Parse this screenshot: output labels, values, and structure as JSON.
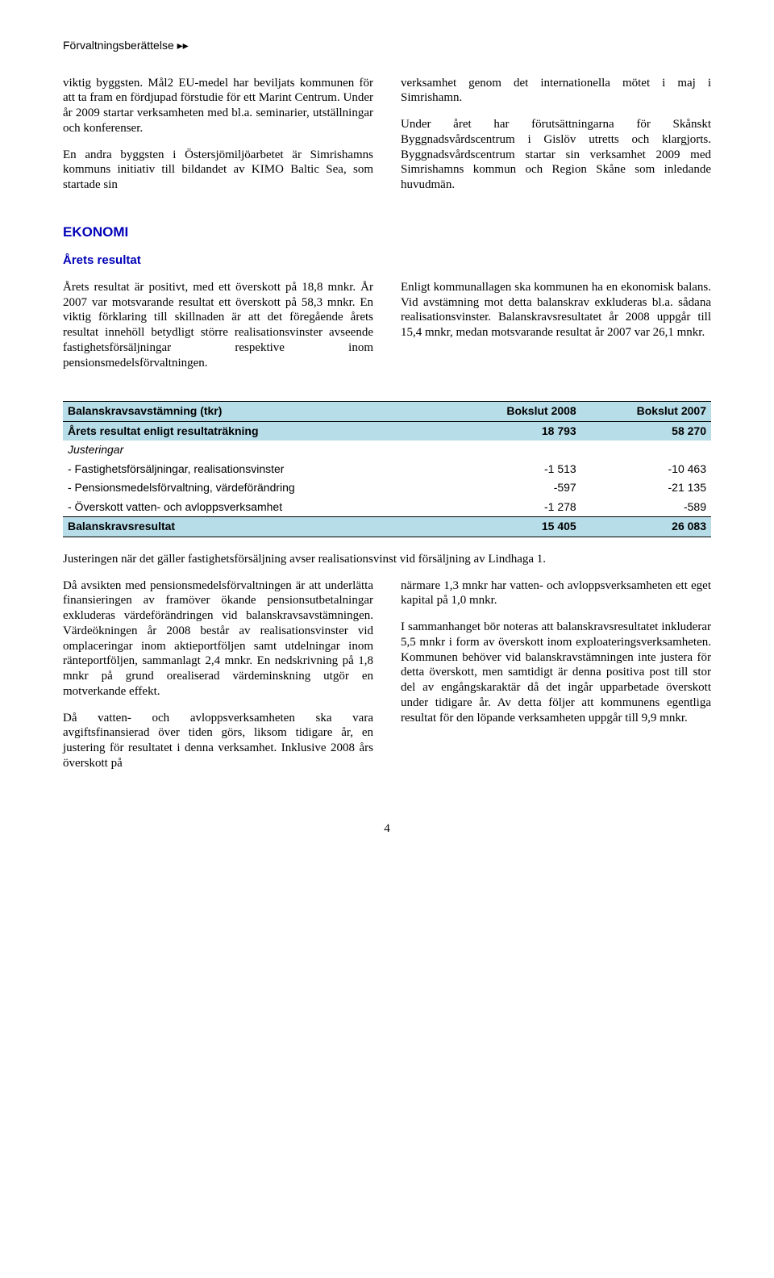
{
  "header": {
    "title": "Förvaltningsberättelse",
    "arrows": "▸▸"
  },
  "block1": {
    "left": {
      "p1": "viktig byggsten. Mål2 EU-medel har beviljats kommunen för att ta fram en fördjupad förstudie för ett Marint Centrum. Under år 2009 startar verksamheten med bl.a. seminarier, utställningar och konferenser.",
      "p2": "En andra byggsten i Östersjömiljöarbetet är Simrishamns kommuns initiativ till bildandet av KIMO Baltic Sea, som startade sin"
    },
    "right": {
      "p1": "verksamhet genom det internationella mötet i maj i Simrishamn.",
      "p2": "Under året har förutsättningarna för Skånskt Byggnadsvårdscentrum i Gislöv utretts och klargjorts. Byggnadsvårdscentrum startar sin verksamhet 2009 med Simrishamns kommun och Region Skåne som inledande huvudmän."
    }
  },
  "ekonomi": {
    "title": "EKONOMI",
    "sub": "Årets resultat"
  },
  "block2": {
    "left": {
      "p1": "Årets resultat är positivt, med ett överskott på 18,8 mnkr. År 2007 var motsvarande resultat ett överskott på 58,3 mnkr. En viktig förklaring till skillnaden är att det föregående årets resultat innehöll betydligt större realisationsvinster avseende fastighetsförsäljningar respektive inom pensionsmedelsförvaltningen."
    },
    "right": {
      "p1": "Enligt kommunallagen ska kommunen ha en ekonomisk balans. Vid avstämning mot detta balanskrav exkluderas bl.a. sådana realisationsvinster. Balanskravsresultatet år 2008 uppgår till 15,4 mnkr, medan motsvarande resultat år 2007 var 26,1 mnkr."
    }
  },
  "table": {
    "header": {
      "c0": "Balanskravsavstämning (tkr)",
      "c1": "Bokslut 2008",
      "c2": "Bokslut 2007"
    },
    "rows": [
      {
        "label": "Årets resultat enligt resultaträkning",
        "v1": "18 793",
        "v2": "58 270",
        "hl": true
      },
      {
        "label": "Justeringar",
        "v1": "",
        "v2": "",
        "italic": true
      },
      {
        "label": "- Fastighetsförsäljningar, realisationsvinster",
        "v1": "-1 513",
        "v2": "-10 463"
      },
      {
        "label": "- Pensionsmedelsförvaltning, värdeförändring",
        "v1": "-597",
        "v2": "-21 135"
      },
      {
        "label": "- Överskott vatten- och avloppsverksamhet",
        "v1": "-1 278",
        "v2": "-589"
      },
      {
        "label": "Balanskravsresultat",
        "v1": "15 405",
        "v2": "26 083",
        "hlLast": true
      }
    ]
  },
  "afterTableLine": "Justeringen när det gäller fastighetsförsäljning avser realisationsvinst vid försäljning av Lindhaga 1.",
  "block3": {
    "left": {
      "p1": "Då avsikten med pensionsmedelsförvaltningen är att underlätta finansieringen av framöver ökande pensionsutbetalningar exkluderas värdeförändringen vid balanskravsavstämningen. Värdeökningen år 2008 består av realisationsvinster vid omplaceringar inom aktieportföljen samt utdelningar inom ränteportföljen, sammanlagt 2,4 mnkr. En nedskrivning på 1,8 mnkr på grund orealiserad värdeminskning utgör en motverkande effekt.",
      "p2": "Då vatten- och avloppsverksamheten ska vara avgiftsfinansierad över tiden görs, liksom tidigare år, en justering för resultatet i denna verksamhet. Inklusive 2008 års överskott på"
    },
    "right": {
      "p1": "närmare 1,3 mnkr har vatten- och avloppsverksamheten ett eget kapital på 1,0 mnkr.",
      "p2": "I sammanhanget bör noteras att balanskravsresultatet inkluderar 5,5 mnkr i form av överskott inom exploateringsverksamheten. Kommunen behöver vid balanskravstämningen inte justera för detta överskott, men samtidigt är denna positiva post till stor del av engångskaraktär då det ingår upparbetade överskott under tidigare år. Av detta följer att kommunens egentliga resultat för den löpande verksamheten uppgår till 9,9 mnkr."
    }
  },
  "footer": {
    "pageNumber": "4"
  }
}
